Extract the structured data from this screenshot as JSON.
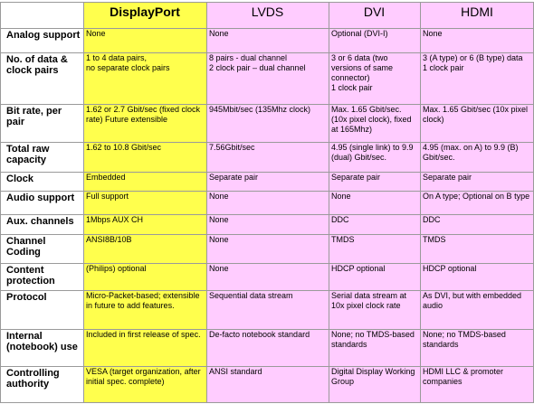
{
  "columns": [
    "DisplayPort",
    "LVDS",
    "DVI",
    "HDMI"
  ],
  "rows": [
    {
      "label": "Analog support",
      "cells": [
        "None",
        "None",
        "Optional (DVI-I)",
        "None"
      ]
    },
    {
      "label": "No. of data & clock pairs",
      "cells": [
        "1 to 4 data pairs,\nno separate clock pairs",
        "8 pairs  - dual channel\n2 clock pair – dual channel",
        "3 or 6 data (two versions of same connector)\n1 clock pair",
        "3 (A type) or 6 (B type) data\n1 clock pair"
      ]
    },
    {
      "label": "Bit rate, per pair",
      "cells": [
        "1.62 or 2.7 Gbit/sec (fixed clock rate) Future extensible",
        "945Mbit/sec  (135Mhz clock)",
        "Max. 1.65 Gbit/sec. (10x pixel clock), fixed at 165Mhz)",
        "Max. 1.65 Gbit/sec (10x pixel clock)"
      ]
    },
    {
      "label": "Total raw capacity",
      "cells": [
        "1.62  to 10.8 Gbit/sec",
        "7.56Gbit/sec",
        "4.95 (single link) to 9.9 (dual) Gbit/sec.",
        "4.95 (max. on A) to 9.9 (B) Gbit/sec."
      ]
    },
    {
      "label": "Clock",
      "cells": [
        "Embedded",
        "Separate pair",
        "Separate pair",
        "Separate pair"
      ]
    },
    {
      "label": "Audio support",
      "cells": [
        "Full support",
        "None",
        "None",
        "On A type; Optional on B type"
      ]
    },
    {
      "label": "Aux. channels",
      "cells": [
        "1Mbps AUX CH",
        "None",
        "DDC",
        "DDC"
      ]
    },
    {
      "label": "Channel Coding",
      "cells": [
        "ANSI8B/10B",
        "None",
        "TMDS",
        "TMDS"
      ]
    },
    {
      "label": "Content protection",
      "cells": [
        "(Philips) optional",
        "None",
        "HDCP optional",
        "HDCP optional"
      ]
    },
    {
      "label": "Protocol",
      "cells": [
        "Micro-Packet-based; extensible in future to add features.",
        "Sequential data stream",
        "Serial data stream at 10x pixel clock rate",
        "As DVI, but with embedded audio"
      ]
    },
    {
      "label": "Internal (notebook) use",
      "cells": [
        "Included in first release of spec.",
        "De-facto notebook standard",
        "None; no TMDS-based standards",
        "None; no TMDS-based standards"
      ]
    },
    {
      "label": "Controlling authority",
      "cells": [
        "VESA (target organization, after initial spec. complete)",
        "ANSI standard",
        "Digital Display Working Group",
        "HDMI LLC & promoter companies"
      ]
    }
  ]
}
